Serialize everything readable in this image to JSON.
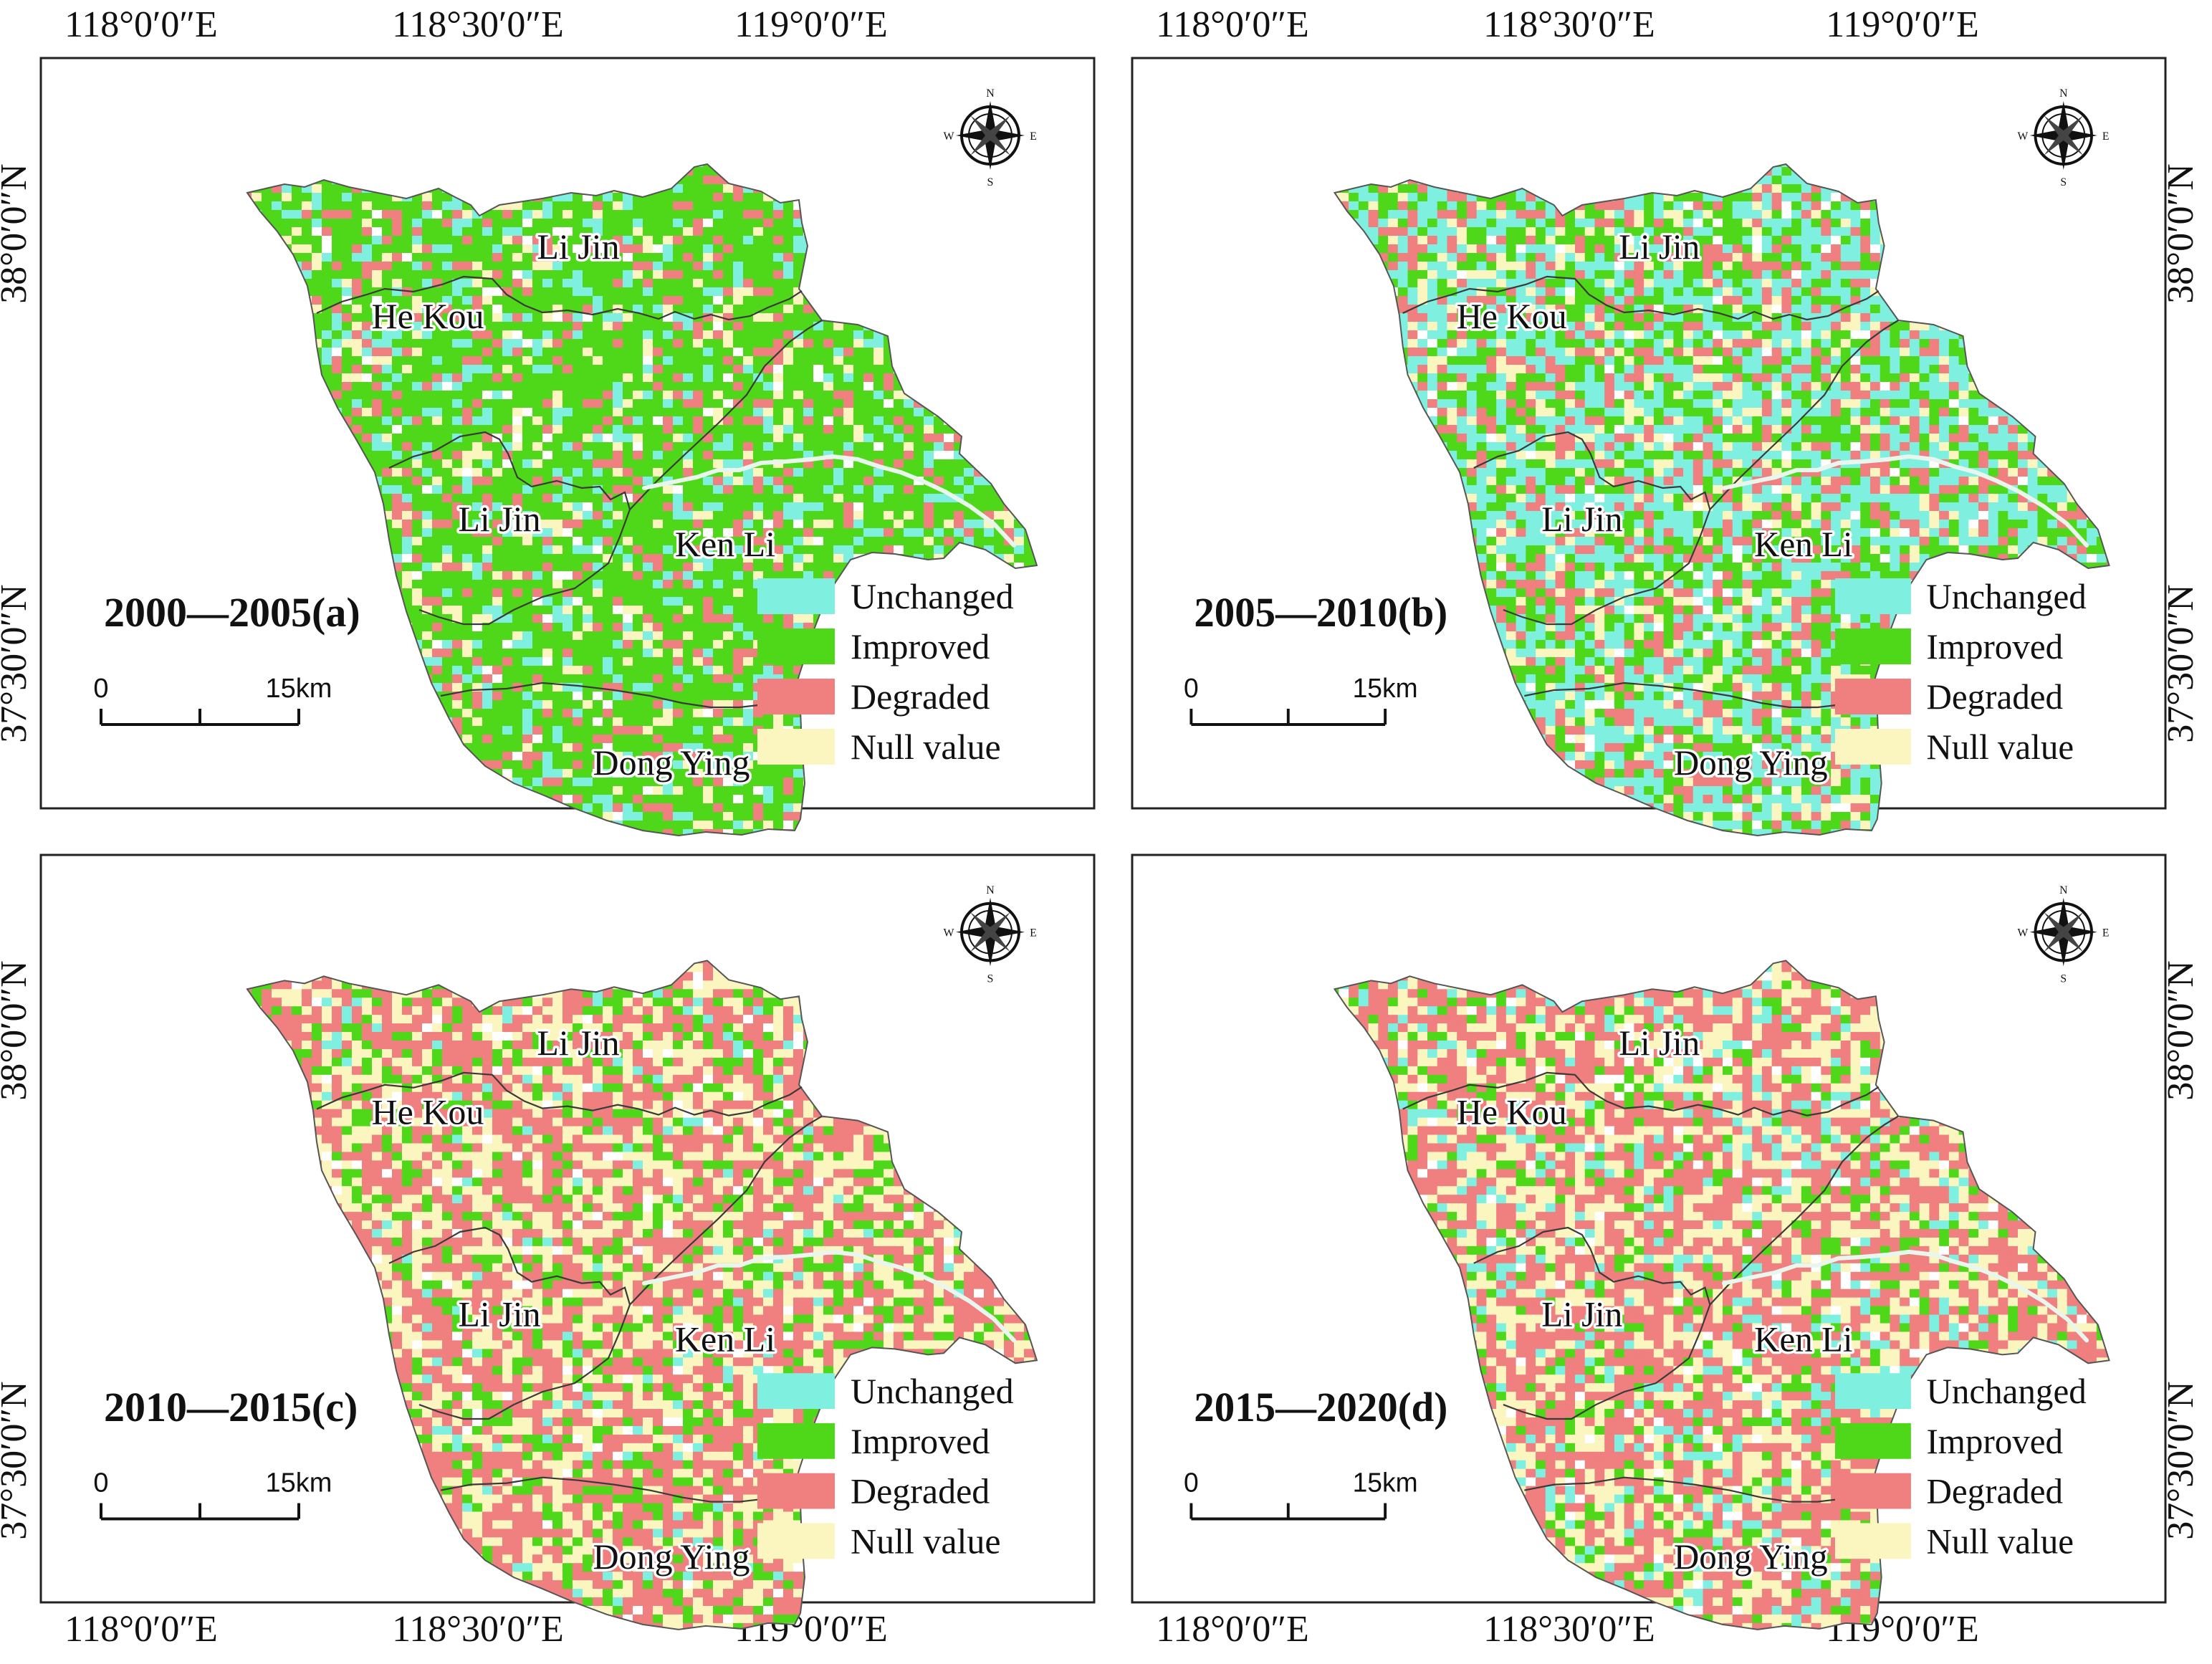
{
  "figure": {
    "top_axis_labels": [
      "118°0′0″E",
      "118°30′0″E",
      "119°0′0″E"
    ],
    "bottom_axis_labels": [
      "118°0′0″E",
      "118°30′0″E",
      "119°0′0″E"
    ],
    "side_axis_labels": [
      "38°0′0″N",
      "37°30′0″N"
    ],
    "colors": {
      "unchanged": "#7ff0e0",
      "improved": "#4fd81a",
      "degraded": "#f07f7f",
      "null": "#fbf5c0",
      "frame": "#222222",
      "boundary": "#3a3a3a",
      "river": "#e8f6ee"
    }
  },
  "legend": {
    "items": [
      {
        "key": "unchanged",
        "label": "Unchanged"
      },
      {
        "key": "improved",
        "label": "Improved"
      },
      {
        "key": "degraded",
        "label": "Degraded"
      },
      {
        "key": "null",
        "label": "Null value"
      }
    ]
  },
  "compass": {
    "n": "N",
    "s": "S",
    "e": "E",
    "w": "W",
    "icon": "north-arrow-compass-icon"
  },
  "scale_bar": {
    "zero": "0",
    "end": "15km"
  },
  "region_names": {
    "he_kou": "He Kou",
    "li_jin_north": "Li Jin",
    "li_jin": "Li Jin",
    "ken_li": "Ken Li",
    "dong_ying": "Dong Ying"
  },
  "panels": [
    {
      "id": "a",
      "title": "2000—2005(a)",
      "composition": {
        "unchanged": 0.14,
        "improved": 0.62,
        "degraded": 0.14,
        "null": 0.1
      }
    },
    {
      "id": "b",
      "title": "2005—2010(b)",
      "composition": {
        "unchanged": 0.36,
        "improved": 0.3,
        "degraded": 0.22,
        "null": 0.12
      }
    },
    {
      "id": "c",
      "title": "2010—2015(c)",
      "composition": {
        "unchanged": 0.04,
        "improved": 0.2,
        "degraded": 0.44,
        "null": 0.32
      }
    },
    {
      "id": "d",
      "title": "2015—2020(d)",
      "composition": {
        "unchanged": 0.11,
        "improved": 0.13,
        "degraded": 0.46,
        "null": 0.3
      }
    }
  ]
}
